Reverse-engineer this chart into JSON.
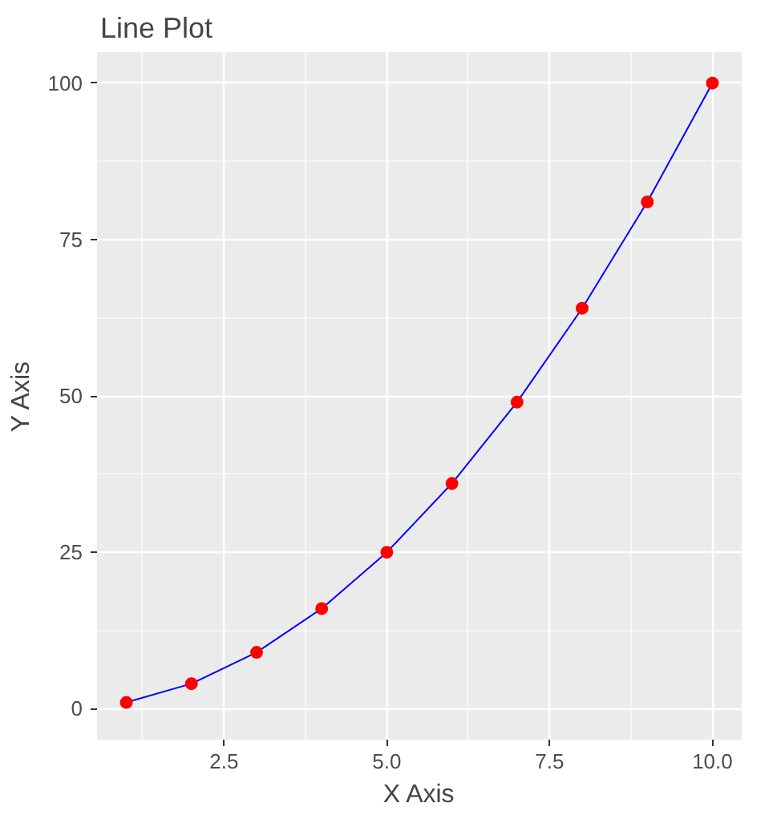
{
  "chart_data": {
    "type": "line",
    "title": "Line Plot",
    "xlabel": "X Axis",
    "ylabel": "Y Axis",
    "x": [
      1,
      2,
      3,
      4,
      5,
      6,
      7,
      8,
      9,
      10
    ],
    "series": [
      {
        "color": "#0000ff",
        "marker": "none",
        "line_style": "solid",
        "values": [
          1,
          4,
          9,
          16,
          25,
          36,
          49,
          64,
          81,
          100
        ]
      },
      {
        "type": "scatter",
        "color": "#ff0000",
        "marker": "circle",
        "values": [
          1,
          4,
          9,
          16,
          25,
          36,
          49,
          64,
          81,
          100
        ]
      }
    ],
    "xlim": [
      0.55,
      10.45
    ],
    "ylim": [
      -4.95,
      104.95
    ],
    "xticks": [
      {
        "value": 2.5,
        "label": "2.5"
      },
      {
        "value": 5,
        "label": "5.0"
      },
      {
        "value": 7.5,
        "label": "7.5"
      },
      {
        "value": 10,
        "label": "10.0"
      }
    ],
    "yticks": [
      0,
      25,
      50,
      75,
      100
    ],
    "grid": true
  }
}
